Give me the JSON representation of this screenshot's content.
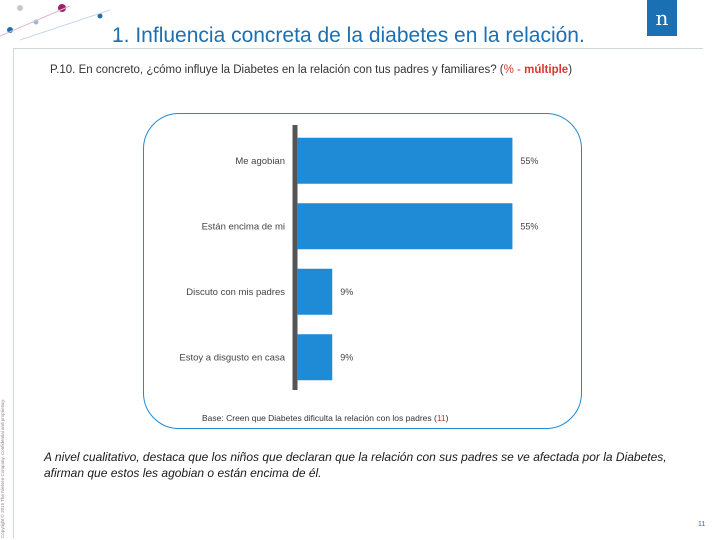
{
  "header": {
    "title": "1. Influencia concreta de la diabetes en la relación.",
    "logo_text": "n"
  },
  "question": {
    "prefix": "P.10.  En concreto, ¿cómo influye la Diabetes en la relación con tus padres y familiares? (",
    "pct_label": "% - ",
    "multiple_label": "múltiple",
    "suffix": ")"
  },
  "chart_data": {
    "type": "bar",
    "orientation": "horizontal",
    "categories": [
      "Me agobian",
      "Están encima de mi",
      "Discuto con mis padres",
      "Estoy a disgusto en casa"
    ],
    "values": [
      55,
      55,
      9,
      9
    ],
    "value_labels": [
      "55%",
      "55%",
      "9%",
      "9%"
    ],
    "xlim": [
      0,
      60
    ],
    "bar_color": "#1f8ad6"
  },
  "base_note": {
    "text": "Base: Creen que Diabetes dificulta la relación con los padres (",
    "count": "11",
    "suffix": ")"
  },
  "summary": "A nivel cualitativo, destaca que los niños que declaran que la relación con sus padres se ve afectada por la Diabetes, afirman que estos les agobian o están encima de él.",
  "side_text": "Copyright © 2015 The Nielsen Company. Confidential and proprietary.",
  "page_number": "11"
}
